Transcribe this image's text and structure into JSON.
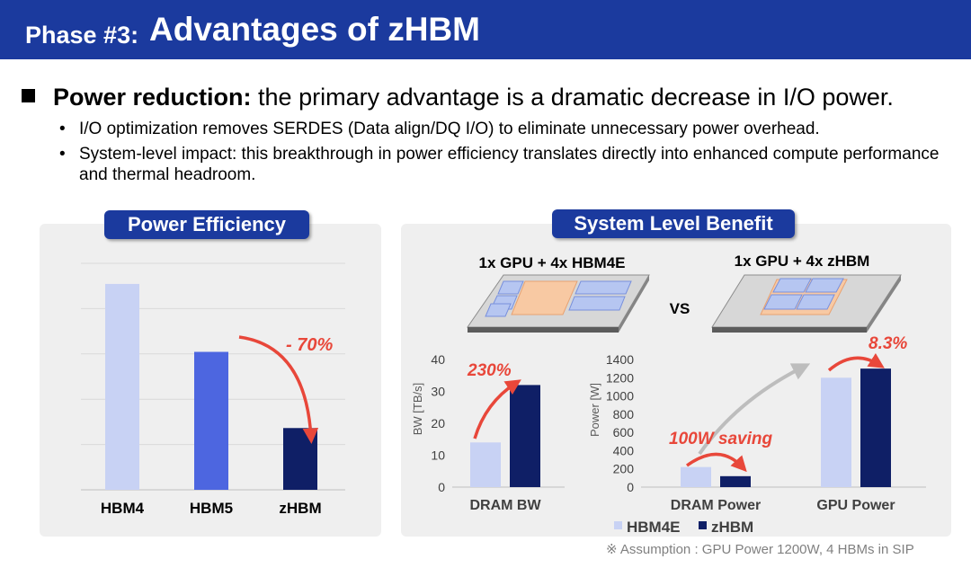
{
  "header": {
    "phase": "Phase #3:",
    "title": "Advantages of zHBM"
  },
  "bullets": {
    "main_bold": "Power reduction:",
    "main_rest": " the primary advantage is a dramatic decrease in I/O power.",
    "sub1": "I/O optimization removes SERDES (Data align/DQ I/O) to eliminate unnecessary power overhead.",
    "sub2": "System-level impact: this breakthrough in power efficiency translates directly into enhanced compute performance and thermal headroom."
  },
  "left_panel": {
    "pill": "Power Efficiency"
  },
  "right_panel": {
    "pill": "System Level Benefit",
    "config1": "1x GPU + 4x HBM4E",
    "config2": "1x GPU + 4x zHBM",
    "vs": "VS"
  },
  "colors": {
    "navy": "#1b3a9e",
    "hbm4": "#c8d2f4",
    "hbm5": "#4d66e0",
    "zhbm": "#0f1f66",
    "hbm4e": "#c8d2f4",
    "arrow_red": "#e8473a",
    "arrow_gray": "#bdbdbd"
  },
  "chart_data": [
    {
      "type": "bar",
      "categories": [
        "HBM4",
        "HBM5",
        "zHBM"
      ],
      "values": [
        100,
        67,
        30
      ],
      "ylim": [
        0,
        110
      ],
      "grid": true,
      "yticks_shown": false,
      "annotation": "- 70%"
    },
    {
      "type": "bar",
      "categories": [
        "DRAM BW"
      ],
      "series": [
        {
          "name": "HBM4E",
          "values": [
            14
          ]
        },
        {
          "name": "zHBM",
          "values": [
            32
          ]
        }
      ],
      "ylabel": "BW [TB/s]",
      "ylim": [
        0,
        40
      ],
      "yticks": [
        "0",
        "10",
        "20",
        "30",
        "40"
      ],
      "annotation": "230%"
    },
    {
      "type": "bar",
      "categories": [
        "DRAM Power",
        "GPU Power"
      ],
      "series": [
        {
          "name": "HBM4E",
          "values": [
            220,
            1200
          ]
        },
        {
          "name": "zHBM",
          "values": [
            120,
            1300
          ]
        }
      ],
      "ylabel": "Power [W]",
      "ylim": [
        0,
        1400
      ],
      "yticks": [
        "0",
        "200",
        "400",
        "600",
        "800",
        "1000",
        "1200",
        "1400"
      ],
      "annotations": [
        "100W saving",
        "8.3%"
      ],
      "legend": {
        "position": "bottom",
        "labels": [
          "HBM4E",
          "zHBM"
        ]
      }
    }
  ],
  "footnote": "※ Assumption : GPU Power 1200W, 4 HBMs in SIP"
}
